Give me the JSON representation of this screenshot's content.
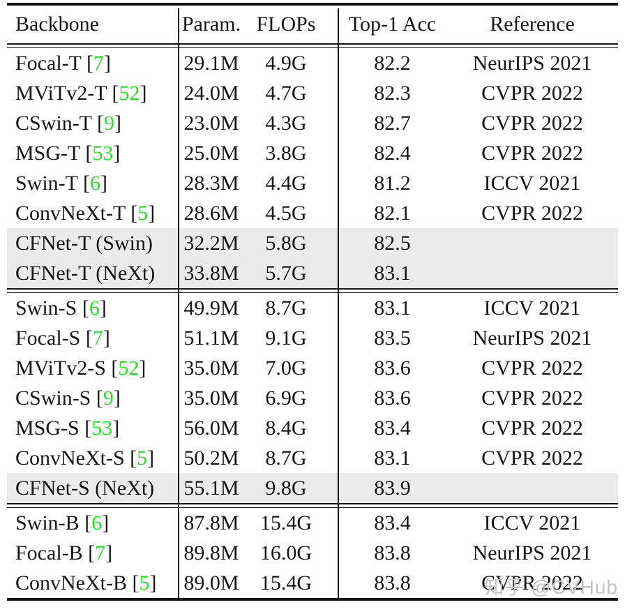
{
  "table": {
    "header": {
      "backbone": "Backbone",
      "param": "Param.",
      "flops": "FLOPs",
      "acc": "Top-1 Acc",
      "reference": "Reference"
    },
    "sections": [
      {
        "rows": [
          {
            "backbone": "Focal-T",
            "cite": "7",
            "param": "29.1M",
            "flops": "4.9G",
            "acc": "82.2",
            "reference": "NeurIPS 2021",
            "highlight": false
          },
          {
            "backbone": "MViTv2-T",
            "cite": "52",
            "param": "24.0M",
            "flops": "4.7G",
            "acc": "82.3",
            "reference": "CVPR 2022",
            "highlight": false
          },
          {
            "backbone": "CSwin-T",
            "cite": "9",
            "param": "23.0M",
            "flops": "4.3G",
            "acc": "82.7",
            "reference": "CVPR 2022",
            "highlight": false
          },
          {
            "backbone": "MSG-T",
            "cite": "53",
            "param": "25.0M",
            "flops": "3.8G",
            "acc": "82.4",
            "reference": "CVPR 2022",
            "highlight": false
          },
          {
            "backbone": "Swin-T",
            "cite": "6",
            "param": "28.3M",
            "flops": "4.4G",
            "acc": "81.2",
            "reference": "ICCV 2021",
            "highlight": false
          },
          {
            "backbone": "ConvNeXt-T",
            "cite": "5",
            "param": "28.6M",
            "flops": "4.5G",
            "acc": "82.1",
            "reference": "CVPR 2022",
            "highlight": false
          },
          {
            "backbone": "CFNet-T (Swin)",
            "cite": null,
            "param": "32.2M",
            "flops": "5.8G",
            "acc": "82.5",
            "reference": "",
            "highlight": true
          },
          {
            "backbone": "CFNet-T (NeXt)",
            "cite": null,
            "param": "33.8M",
            "flops": "5.7G",
            "acc": "83.1",
            "reference": "",
            "highlight": true
          }
        ]
      },
      {
        "rows": [
          {
            "backbone": "Swin-S",
            "cite": "6",
            "param": "49.9M",
            "flops": "8.7G",
            "acc": "83.1",
            "reference": "ICCV 2021",
            "highlight": false
          },
          {
            "backbone": "Focal-S",
            "cite": "7",
            "param": "51.1M",
            "flops": "9.1G",
            "acc": "83.5",
            "reference": "NeurIPS 2021",
            "highlight": false
          },
          {
            "backbone": "MViTv2-S",
            "cite": "52",
            "param": "35.0M",
            "flops": "7.0G",
            "acc": "83.6",
            "reference": "CVPR 2022",
            "highlight": false
          },
          {
            "backbone": "CSwin-S",
            "cite": "9",
            "param": "35.0M",
            "flops": "6.9G",
            "acc": "83.6",
            "reference": "CVPR 2022",
            "highlight": false
          },
          {
            "backbone": "MSG-S",
            "cite": "53",
            "param": "56.0M",
            "flops": "8.4G",
            "acc": "83.4",
            "reference": "CVPR 2022",
            "highlight": false
          },
          {
            "backbone": "ConvNeXt-S",
            "cite": "5",
            "param": "50.2M",
            "flops": "8.7G",
            "acc": "83.1",
            "reference": "CVPR 2022",
            "highlight": false
          },
          {
            "backbone": "CFNet-S (NeXt)",
            "cite": null,
            "param": "55.1M",
            "flops": "9.8G",
            "acc": "83.9",
            "reference": "",
            "highlight": true
          }
        ]
      },
      {
        "rows": [
          {
            "backbone": "Swin-B",
            "cite": "6",
            "param": "87.8M",
            "flops": "15.4G",
            "acc": "83.4",
            "reference": "ICCV 2021",
            "highlight": false
          },
          {
            "backbone": "Focal-B",
            "cite": "7",
            "param": "89.8M",
            "flops": "16.0G",
            "acc": "83.8",
            "reference": "NeurIPS 2021",
            "highlight": false
          },
          {
            "backbone": "ConvNeXt-B",
            "cite": "5",
            "param": "89.0M",
            "flops": "15.4G",
            "acc": "83.8",
            "reference": "CVPR 2022",
            "highlight": false
          }
        ]
      }
    ]
  },
  "watermark": {
    "text": "知乎 @CVHub"
  },
  "colors": {
    "citation_green": "#2adf2a",
    "highlight_gray": "#ebebeb",
    "rule_black": "#141414",
    "watermark_gray": "#c2c2c2"
  }
}
